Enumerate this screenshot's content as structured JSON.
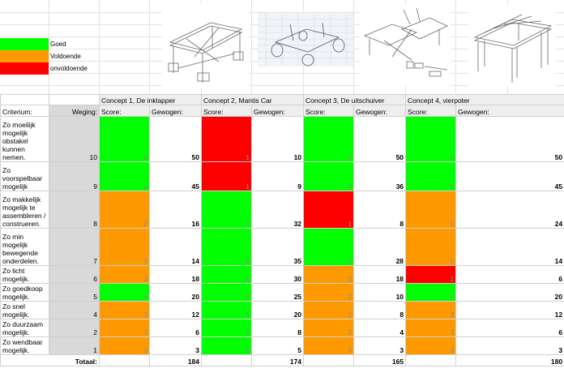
{
  "legend": [
    {
      "label": "Goed",
      "color": "#00ff00"
    },
    {
      "label": "Voldoende",
      "color": "#ff9900"
    },
    {
      "label": "onvoldoende",
      "color": "#ff0000"
    }
  ],
  "images": [
    "concept-1-sketch",
    "concept-2-sketch",
    "concept-3-sketch",
    "concept-4-sketch"
  ],
  "concepts": [
    "Concept 1, De inklapper",
    "Concept 2, Mantis Car",
    "Concept 3, De uitschuiver",
    "Concept 4, vierpoter"
  ],
  "headers": {
    "criterium": "Criterium:",
    "weging": "Weging:",
    "score": "Score:",
    "gewogen": "Gewogen:"
  },
  "rows": [
    {
      "criterium": "Zo moeilijk mogelijk obstakel kunnen nemen.",
      "weging": "10",
      "cells": [
        [
          "5",
          "50",
          "green"
        ],
        [
          "1",
          "10",
          "red"
        ],
        [
          "5",
          "50",
          "green"
        ],
        [
          "5",
          "50",
          "green"
        ]
      ]
    },
    {
      "criterium": "Zo voorspelbaar mogelijk",
      "weging": "9",
      "cells": [
        [
          "5",
          "45",
          "green"
        ],
        [
          "1",
          "9",
          "red"
        ],
        [
          "4",
          "36",
          "green"
        ],
        [
          "5",
          "45",
          "green"
        ]
      ]
    },
    {
      "criterium": "Zo makkelijk mogelijk te assembleren / construeren.",
      "weging": "8",
      "cells": [
        [
          "2",
          "16",
          "orange"
        ],
        [
          "4",
          "32",
          "green"
        ],
        [
          "1",
          "8",
          "red"
        ],
        [
          "3",
          "24",
          "orange"
        ]
      ]
    },
    {
      "criterium": "Zo min mogelijk bewegende onderdelen.",
      "weging": "7",
      "cells": [
        [
          "2",
          "14",
          "orange"
        ],
        [
          "5",
          "35",
          "green"
        ],
        [
          "4",
          "28",
          "green"
        ],
        [
          "2",
          "14",
          "orange"
        ]
      ]
    },
    {
      "criterium": "Zo licht mogelijk.",
      "weging": "6",
      "cells": [
        [
          "3",
          "18",
          "orange"
        ],
        [
          "5",
          "30",
          "green"
        ],
        [
          "3",
          "18",
          "orange"
        ],
        [
          "1",
          "6",
          "red"
        ]
      ]
    },
    {
      "criterium": "Zo goedkoop mogelijk.",
      "weging": "5",
      "cells": [
        [
          "4",
          "20",
          "green"
        ],
        [
          "5",
          "25",
          "green"
        ],
        [
          "2",
          "10",
          "orange"
        ],
        [
          "4",
          "20",
          "green"
        ]
      ]
    },
    {
      "criterium": "Zo snel mogelijk.",
      "weging": "4",
      "cells": [
        [
          "3",
          "12",
          "orange"
        ],
        [
          "5",
          "20",
          "green"
        ],
        [
          "2",
          "8",
          "orange"
        ],
        [
          "3",
          "12",
          "orange"
        ]
      ]
    },
    {
      "criterium": "Zo duurzaam mogelijk.",
      "weging": "2",
      "cells": [
        [
          "3",
          "6",
          "orange"
        ],
        [
          "4",
          "8",
          "green"
        ],
        [
          "2",
          "4",
          "orange"
        ],
        [
          "3",
          "6",
          "orange"
        ]
      ]
    },
    {
      "criterium": "Zo wendbaar mogelijk.",
      "weging": "1",
      "cells": [
        [
          "3",
          "3",
          "orange"
        ],
        [
          "5",
          "5",
          "green"
        ],
        [
          "3",
          "3",
          "orange"
        ],
        [
          "3",
          "3",
          "orange"
        ]
      ]
    }
  ],
  "totals": {
    "label": "Totaal:",
    "values": [
      "184",
      "174",
      "165",
      "180"
    ]
  }
}
